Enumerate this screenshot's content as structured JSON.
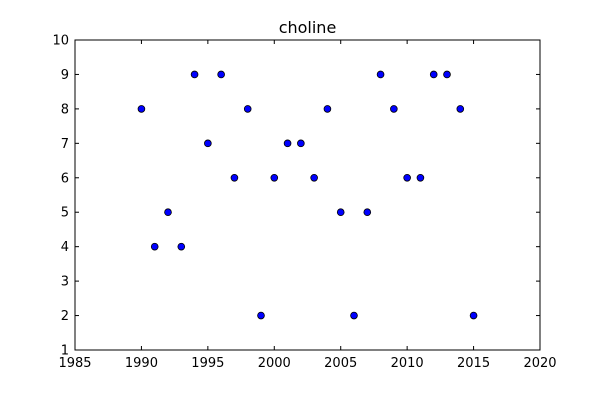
{
  "chart_data": {
    "type": "scatter",
    "title": "choline",
    "xlabel": "",
    "ylabel": "",
    "xlim": [
      1985,
      2020
    ],
    "ylim": [
      1,
      10
    ],
    "xticks": [
      1985,
      1990,
      1995,
      2000,
      2005,
      2010,
      2015,
      2020
    ],
    "yticks": [
      1,
      2,
      3,
      4,
      5,
      6,
      7,
      8,
      9,
      10
    ],
    "grid": false,
    "legend": "none",
    "marker_color": "#0000ff",
    "marker_edge_color": "#000000",
    "x": [
      1990,
      1991,
      1992,
      1993,
      1994,
      1995,
      1996,
      1997,
      1998,
      1999,
      2000,
      2001,
      2002,
      2003,
      2004,
      2005,
      2006,
      2007,
      2008,
      2009,
      2010,
      2011,
      2012,
      2013,
      2014,
      2015
    ],
    "y": [
      8,
      4,
      5,
      4,
      9,
      7,
      9,
      6,
      8,
      2,
      6,
      7,
      7,
      6,
      8,
      5,
      2,
      5,
      9,
      8,
      6,
      6,
      9,
      9,
      8,
      2
    ]
  }
}
